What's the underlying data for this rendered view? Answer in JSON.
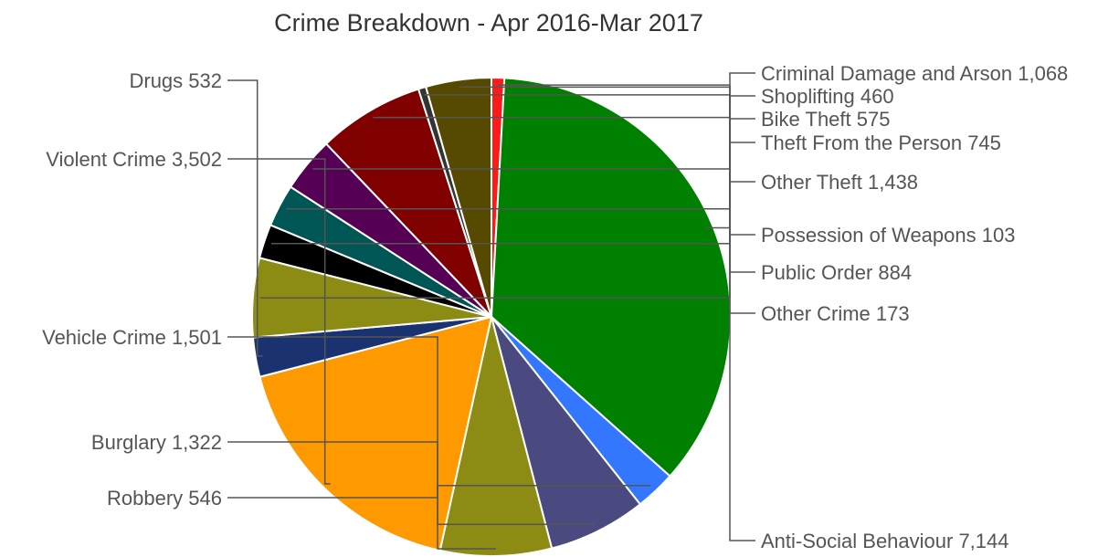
{
  "chart_data": {
    "type": "pie",
    "title": "Crime Breakdown - Apr 2016-Mar 2017",
    "start_angle_deg": 90,
    "direction": "clockwise",
    "slices": [
      {
        "label": "Other Crime",
        "value": 173,
        "display": "Other Crime 173",
        "color": "#ff1a1a"
      },
      {
        "label": "Anti-Social Behaviour",
        "value": 7144,
        "display": "Anti-Social Behaviour 7,144",
        "color": "#008000"
      },
      {
        "label": "Robbery",
        "value": 546,
        "display": "Robbery 546",
        "color": "#3377ff"
      },
      {
        "label": "Burglary",
        "value": 1322,
        "display": "Burglary 1,322",
        "color": "#4a4a80"
      },
      {
        "label": "Vehicle Crime",
        "value": 1501,
        "display": "Vehicle Crime 1,501",
        "color": "#8c8c14"
      },
      {
        "label": "Violent Crime",
        "value": 3502,
        "display": "Violent Crime 3,502",
        "color": "#ff9900"
      },
      {
        "label": "Drugs",
        "value": 532,
        "display": "Drugs 532",
        "color": "#1a3370"
      },
      {
        "label": "Criminal Damage and Arson",
        "value": 1068,
        "display": "Criminal Damage and Arson 1,068",
        "color": "#8c8c14"
      },
      {
        "label": "Shoplifting",
        "value": 460,
        "display": "Shoplifting 460",
        "color": "#000000"
      },
      {
        "label": "Bike Theft",
        "value": 575,
        "display": "Bike Theft 575",
        "color": "#005555"
      },
      {
        "label": "Theft From the Person",
        "value": 745,
        "display": "Theft From the Person 745",
        "color": "#550055"
      },
      {
        "label": "Other Theft",
        "value": 1438,
        "display": "Other Theft 1,438",
        "color": "#800000"
      },
      {
        "label": "Possession of Weapons",
        "value": 103,
        "display": "Possession of Weapons 103",
        "color": "#333333"
      },
      {
        "label": "Public Order",
        "value": 884,
        "display": "Public Order 884",
        "color": "#554a00"
      }
    ]
  }
}
